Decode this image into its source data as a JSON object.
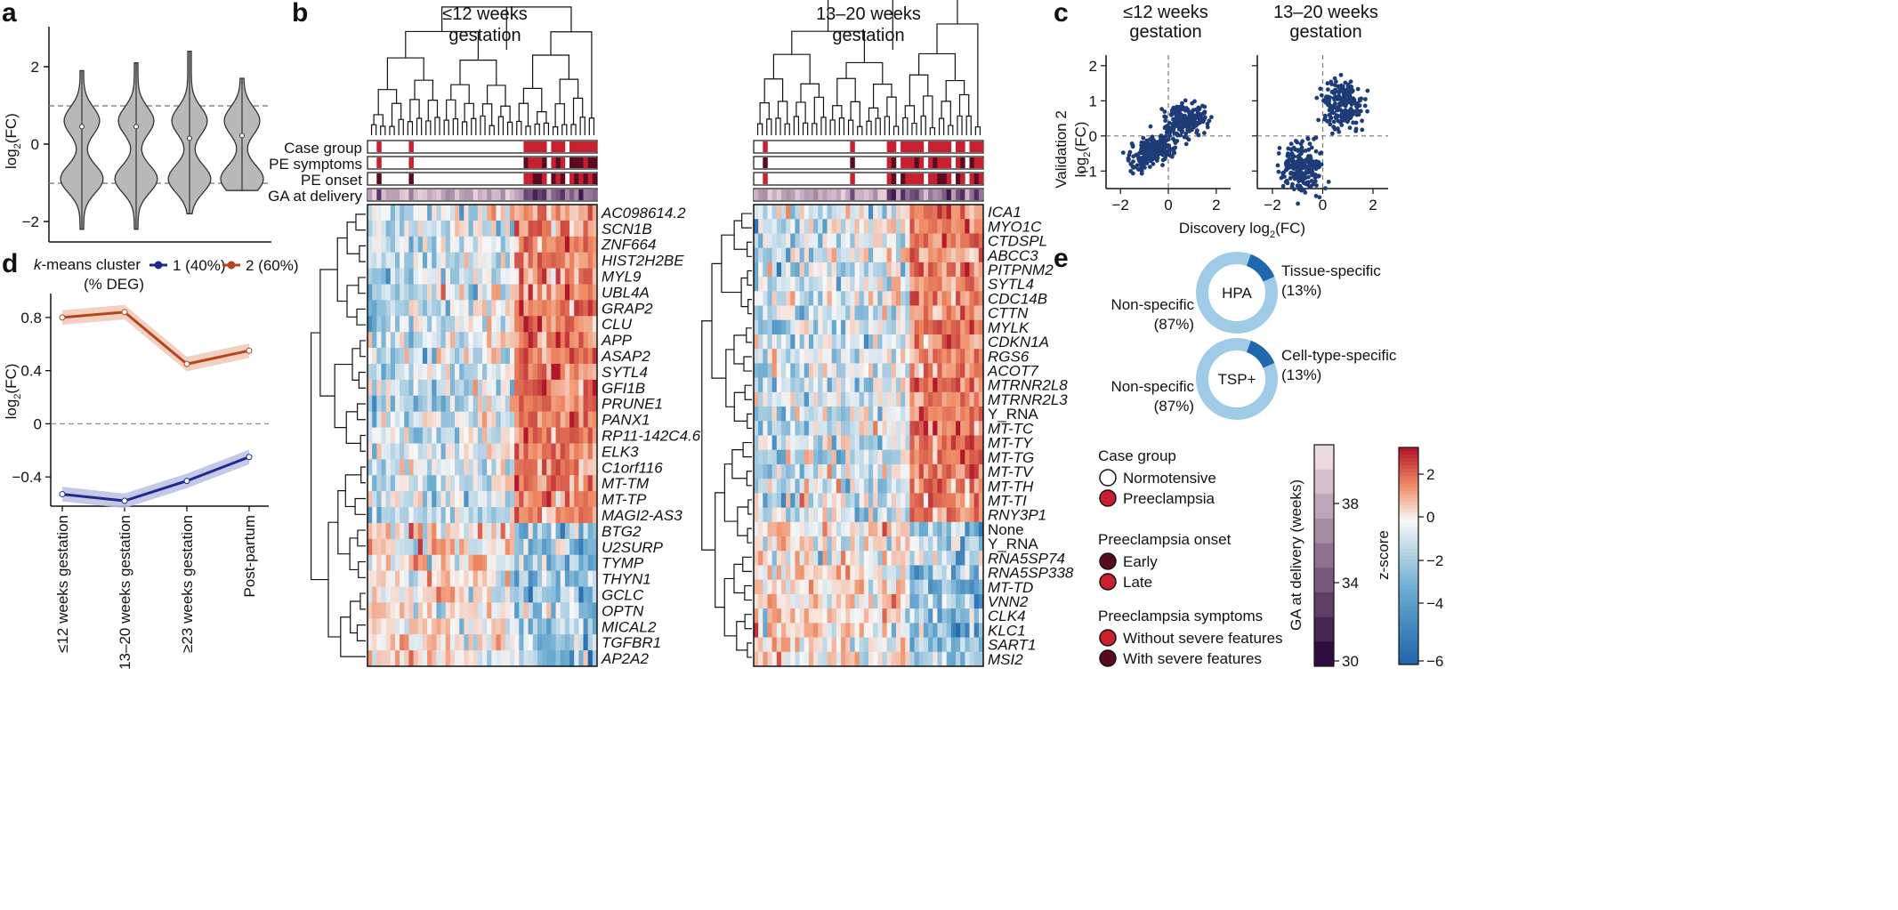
{
  "panels": {
    "a": "a",
    "b": "b",
    "c": "c",
    "d": "d",
    "e": "e"
  },
  "panel_a": {
    "ylabel_base": "log",
    "ylabel_sub": "2",
    "ylabel_tail": "(FC)",
    "yticks": [
      "2",
      "0",
      "−2"
    ],
    "violin_medians": [
      0.45,
      0.45,
      0.15,
      0.22
    ]
  },
  "panel_b": {
    "title_left_1": "≤12 weeks",
    "title_left_2": "gestation",
    "title_right_1": "13–20 weeks",
    "title_right_2": "gestation",
    "annotation_rows": [
      "Case group",
      "PE symptoms",
      "PE onset",
      "GA at delivery"
    ],
    "genes_left": [
      "AC098614.2",
      "SCN1B",
      "ZNF664",
      "HIST2H2BE",
      "MYL9",
      "UBL4A",
      "GRAP2",
      "CLU",
      "APP",
      "ASAP2",
      "SYTL4",
      "GFI1B",
      "PRUNE1",
      "PANX1",
      "RP11-142C4.6",
      "ELK3",
      "C1orf116",
      "MT-TM",
      "MT-TP",
      "MAGI2-AS3",
      "BTG2",
      "U2SURP",
      "TYMP",
      "THYN1",
      "GCLC",
      "OPTN",
      "MICAL2",
      "TGFBR1",
      "AP2A2"
    ],
    "genes_right": [
      "ICA1",
      "MYO1C",
      "CTDSPL",
      "ABCC3",
      "PITPNM2",
      "SYTL4",
      "CDC14B",
      "CTTN",
      "MYLK",
      "CDKN1A",
      "RGS6",
      "ACOT7",
      "MTRNR2L8",
      "MTRNR2L3",
      "Y_RNA",
      "MT-TC",
      "MT-TY",
      "MT-TG",
      "MT-TV",
      "MT-TH",
      "MT-TI",
      "RNY3P1",
      "None",
      "Y_RNA",
      "RNA5SP74",
      "RNA5SP338",
      "MT-TD",
      "VNN2",
      "CLK4",
      "KLC1",
      "SART1",
      "MSI2"
    ],
    "italic_exceptions": [
      "Y_RNA",
      "None"
    ]
  },
  "panel_c": {
    "title_left_1": "≤12 weeks",
    "title_left_2": "gestation",
    "title_right_1": "13–20 weeks",
    "title_right_2": "gestation",
    "ylabel_1": "Validation 2",
    "ylabel_2": "log",
    "ylabel_sub": "2",
    "ylabel_tail": "(FC)",
    "xlabel_base": "Discovery log",
    "xlabel_sub": "2",
    "xlabel_tail": "(FC)",
    "yticks": [
      "2",
      "1",
      "0",
      "−1"
    ],
    "xticks": [
      "−2",
      "0",
      "2"
    ]
  },
  "panel_d": {
    "legend_title_1": "-means cluster",
    "legend_title_k": "k",
    "legend_title_2": "(% DEG)",
    "legend_item_1": "1 (40%)",
    "legend_item_2": "2 (60%)",
    "ylabel_base": "log",
    "ylabel_sub": "2",
    "ylabel_tail": "(FC)",
    "yticks": [
      "0.8",
      "0.4",
      "0",
      "−0.4"
    ],
    "xticks": [
      "≤12 weeks gestation",
      "13–20 weeks gestation",
      "≥23 weeks gestation",
      "Post-partum"
    ]
  },
  "chart_data": {
    "type": "line",
    "title": "k-means cluster (% DEG)",
    "xlabel": "",
    "ylabel": "log2(FC)",
    "categories": [
      "≤12 weeks gestation",
      "13–20 weeks gestation",
      "≥23 weeks gestation",
      "Post-partum"
    ],
    "series": [
      {
        "name": "1 (40%)",
        "color": "#1f2a8a",
        "values": [
          -0.53,
          -0.58,
          -0.43,
          -0.25
        ]
      },
      {
        "name": "2 (60%)",
        "color": "#b5451b",
        "values": [
          0.8,
          0.84,
          0.45,
          0.55
        ]
      }
    ],
    "ylim": [
      -0.62,
      0.98
    ]
  },
  "panel_e": {
    "donut1_center": "HPA",
    "donut1_label_left_1": "Non-specific",
    "donut1_label_left_2": "(87%)",
    "donut1_label_right_1": "Tissue-specific",
    "donut1_label_right_2": "(13%)",
    "donut2_center": "TSP+",
    "donut2_label_left_1": "Non-specific",
    "donut2_label_left_2": "(87%)",
    "donut2_label_right_1": "Cell-type-specific",
    "donut2_label_right_2": "(13%)",
    "specific_fraction": 0.13
  },
  "legend": {
    "case_group_title": "Case group",
    "normotensive": "Normotensive",
    "preeclampsia": "Preeclampsia",
    "onset_title": "Preeclampsia onset",
    "early": "Early",
    "late": "Late",
    "symptoms_title": "Preeclampsia symptoms",
    "without_severe": "Without severe features",
    "with_severe": "With severe features",
    "ga_label": "GA at delivery (weeks)",
    "ga_ticks": [
      "38",
      "34",
      "30"
    ],
    "z_label": "z-score",
    "z_ticks": [
      "2",
      "0",
      "−2",
      "−4",
      "−6"
    ]
  },
  "colors": {
    "violin": "#b8b8b8",
    "pe_red": "#c8202f",
    "pe_dark": "#5c0a1e",
    "scatter": "#1d3c78",
    "donut_light": "#9fcbe6",
    "donut_dark": "#2068ac"
  }
}
